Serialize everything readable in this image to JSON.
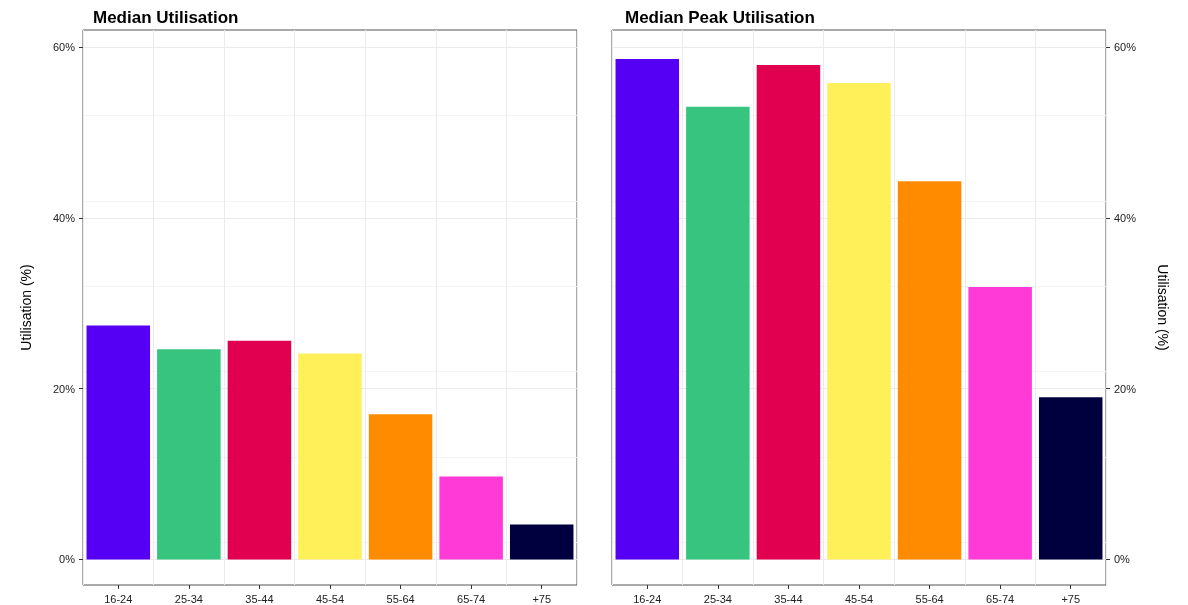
{
  "chart_data": [
    {
      "type": "bar",
      "title": "Median Utilisation",
      "ylabel": "Utilisation (%)",
      "categories": [
        "16-24",
        "25-34",
        "35-44",
        "45-54",
        "55-64",
        "65-74",
        "+75"
      ],
      "series": [
        {
          "colors": [
            "#5500f5",
            "#36c47f",
            "#e0004f",
            "#fff05a",
            "#ff8c00",
            "#ff3ad6",
            "#00003f"
          ],
          "values": [
            27.4,
            24.6,
            25.6,
            24.1,
            17.0,
            9.7,
            4.1
          ]
        }
      ],
      "ylim": [
        -3,
        62
      ],
      "yticks": [
        {
          "value": 0,
          "label": "0%"
        },
        {
          "value": 20,
          "label": "20%"
        },
        {
          "value": 40,
          "label": "40%"
        },
        {
          "value": 60,
          "label": "60%"
        }
      ],
      "grid": true
    },
    {
      "type": "bar",
      "title": "Median Peak Utilisation",
      "y2label": "Utilisation (%)",
      "categories": [
        "16-24",
        "25-34",
        "35-44",
        "45-54",
        "55-64",
        "65-74",
        "+75"
      ],
      "series": [
        {
          "axis": "y2",
          "colors": [
            "#5500f5",
            "#36c47f",
            "#e0004f",
            "#fff05a",
            "#ff8c00",
            "#ff3ad6",
            "#00003f"
          ],
          "values": [
            58.6,
            53.0,
            57.9,
            55.8,
            44.3,
            31.9,
            19.0
          ]
        }
      ],
      "y2lim": [
        -3,
        62
      ],
      "y2ticks": [
        {
          "value": 0,
          "label": "0%"
        },
        {
          "value": 20,
          "label": "20%"
        },
        {
          "value": 40,
          "label": "40%"
        },
        {
          "value": 60,
          "label": "60%"
        }
      ],
      "grid": true
    }
  ]
}
